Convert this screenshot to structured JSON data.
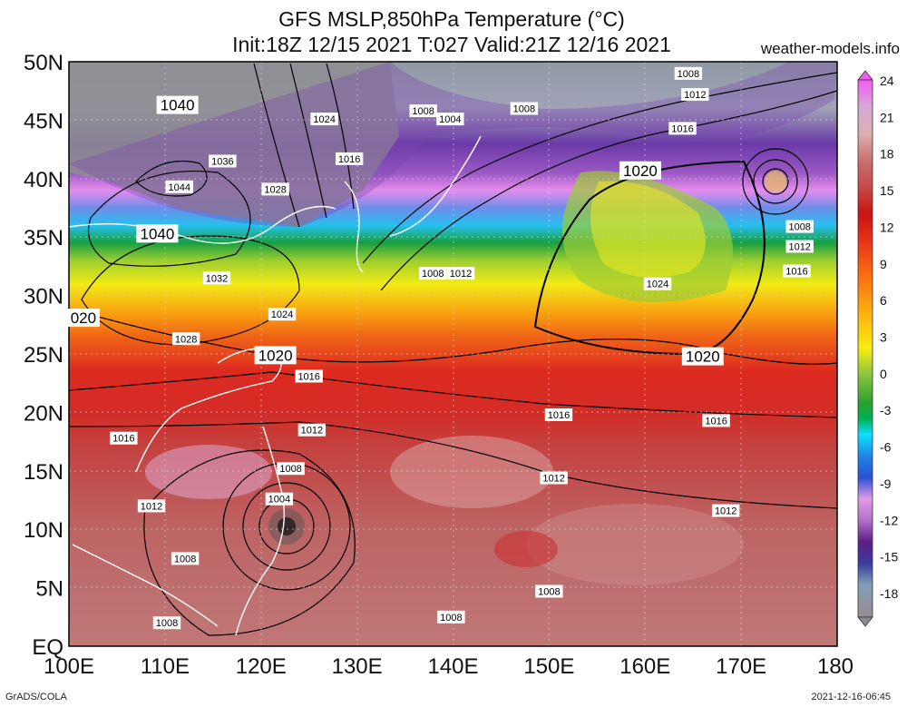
{
  "title_line1": "GFS MSLP,850hPa Temperature (°C)",
  "title_line2": "Init:18Z 12/15 2021 T:027 Valid:21Z 12/16 2021",
  "site": "weather-models.info",
  "footer_left": "GrADS/COLA",
  "footer_right": "2021-12-16-06:45",
  "map": {
    "lat_labels": [
      "50N",
      "45N",
      "40N",
      "35N",
      "30N",
      "25N",
      "20N",
      "15N",
      "10N",
      "5N",
      "EQ"
    ],
    "lon_labels": [
      "100E",
      "110E",
      "120E",
      "130E",
      "140E",
      "150E",
      "160E",
      "170E",
      "180"
    ],
    "lat_values": [
      50,
      45,
      40,
      35,
      30,
      25,
      20,
      15,
      10,
      5,
      0
    ],
    "lon_values": [
      100,
      110,
      120,
      130,
      140,
      150,
      160,
      170,
      180
    ]
  },
  "colorbar": {
    "labels": [
      "24",
      "21",
      "18",
      "15",
      "12",
      "9",
      "6",
      "3",
      "0",
      "-3",
      "-6",
      "-9",
      "-12",
      "-15",
      "-18"
    ],
    "colors": [
      "#9b8a90",
      "#7fa0b8",
      "#4a8fc2",
      "#3b3b9a",
      "#5b1e86",
      "#8e3fb0",
      "#b46fc7",
      "#e29be6",
      "#d8d0dc",
      "#2a4fd6",
      "#1e86e6",
      "#16c3f2",
      "#0de0ff",
      "#00b050",
      "#2ea02e",
      "#88c440",
      "#d8e030",
      "#f6ee10",
      "#fcc010",
      "#fc9010",
      "#f96010",
      "#e8331a",
      "#d6221c",
      "#c81414",
      "#c64a48",
      "#c87070",
      "#d08a8a",
      "#dcb0b0",
      "#d6a8d6",
      "#f25cf0"
    ]
  },
  "pressure_labels": [
    {
      "text": "1040",
      "lat": 46.3,
      "lon": 111.3,
      "big": true
    },
    {
      "text": "1040",
      "lat": 35.3,
      "lon": 109.2,
      "big": true
    },
    {
      "text": "1044",
      "lat": 39.3,
      "lon": 111.5
    },
    {
      "text": "1036",
      "lat": 41.5,
      "lon": 116.0
    },
    {
      "text": "1032",
      "lat": 31.5,
      "lon": 115.4
    },
    {
      "text": "1028",
      "lat": 39.1,
      "lon": 121.5
    },
    {
      "text": "1028",
      "lat": 26.3,
      "lon": 112.2
    },
    {
      "text": "1024",
      "lat": 45.1,
      "lon": 126.6
    },
    {
      "text": "1024",
      "lat": 28.4,
      "lon": 122.2
    },
    {
      "text": "1016",
      "lat": 41.7,
      "lon": 129.2
    },
    {
      "text": "1008",
      "lat": 45.8,
      "lon": 136.9
    },
    {
      "text": "1004",
      "lat": 45.1,
      "lon": 139.7
    },
    {
      "text": "1008",
      "lat": 46.0,
      "lon": 147.4
    },
    {
      "text": "1008",
      "lat": 49.0,
      "lon": 164.5
    },
    {
      "text": "1012",
      "lat": 47.2,
      "lon": 165.2
    },
    {
      "text": "1016",
      "lat": 44.3,
      "lon": 163.9
    },
    {
      "text": "1020",
      "lat": 40.7,
      "lon": 159.5,
      "big": true
    },
    {
      "text": "1008",
      "lat": 35.9,
      "lon": 176.1
    },
    {
      "text": "1012",
      "lat": 34.2,
      "lon": 176.1
    },
    {
      "text": "1016",
      "lat": 32.1,
      "lon": 175.8
    },
    {
      "text": "1008",
      "lat": 31.9,
      "lon": 137.9
    },
    {
      "text": "1012",
      "lat": 31.9,
      "lon": 140.8
    },
    {
      "text": "1024",
      "lat": 31.0,
      "lon": 161.3
    },
    {
      "text": "1020",
      "lat": 24.8,
      "lon": 166.0,
      "big": true
    },
    {
      "text": "1020",
      "lat": 24.9,
      "lon": 121.5,
      "big": true
    },
    {
      "text": "020",
      "lat": 28.1,
      "lon": 101.5,
      "big": true
    },
    {
      "text": "1016",
      "lat": 23.1,
      "lon": 125.0
    },
    {
      "text": "1016",
      "lat": 19.8,
      "lon": 151.0
    },
    {
      "text": "1016",
      "lat": 19.3,
      "lon": 167.4
    },
    {
      "text": "1012",
      "lat": 18.5,
      "lon": 125.3
    },
    {
      "text": "1012",
      "lat": 14.4,
      "lon": 150.5
    },
    {
      "text": "1012",
      "lat": 11.6,
      "lon": 168.4
    },
    {
      "text": "1016",
      "lat": 17.8,
      "lon": 105.7
    },
    {
      "text": "1012",
      "lat": 12.0,
      "lon": 108.6
    },
    {
      "text": "1008",
      "lat": 15.2,
      "lon": 123.1
    },
    {
      "text": "1004",
      "lat": 12.6,
      "lon": 121.9
    },
    {
      "text": "1008",
      "lat": 7.5,
      "lon": 112.1
    },
    {
      "text": "1008",
      "lat": 4.7,
      "lon": 150.0
    },
    {
      "text": "1008",
      "lat": 2.5,
      "lon": 139.8
    },
    {
      "text": "1008",
      "lat": 2.0,
      "lon": 110.2
    }
  ]
}
